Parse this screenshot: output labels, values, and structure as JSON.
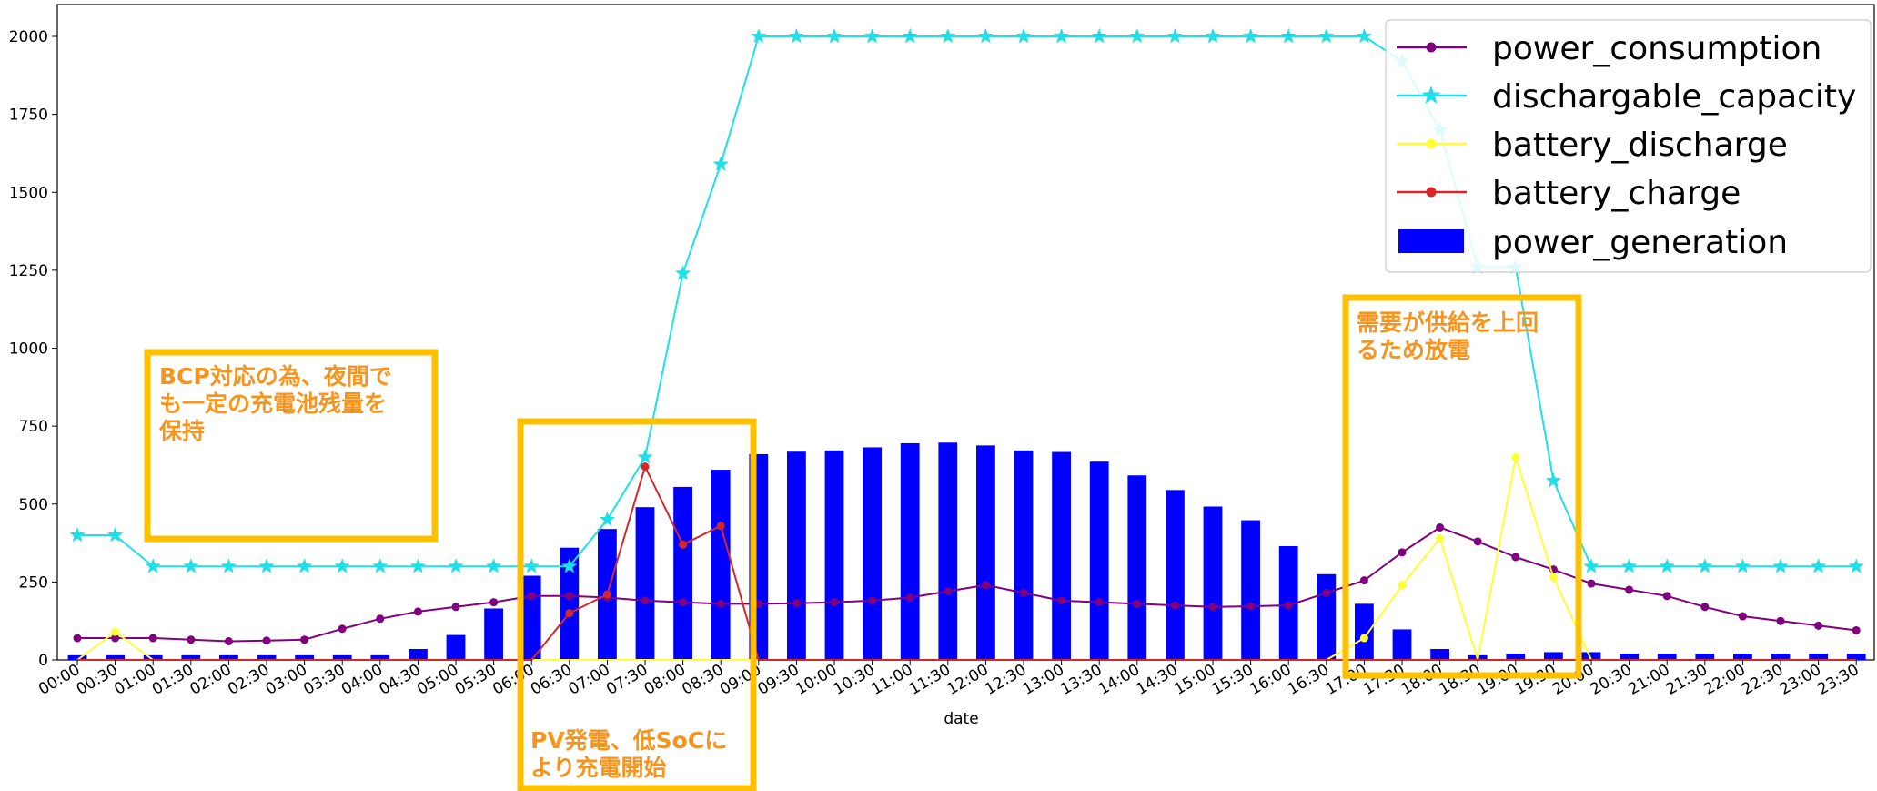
{
  "chart_data": {
    "type": "bar+line",
    "xlabel": "date",
    "ylabel": "",
    "ylim": [
      0,
      2100
    ],
    "yticks": [
      0,
      250,
      500,
      750,
      1000,
      1250,
      1500,
      1750,
      2000
    ],
    "categories": [
      "00:00",
      "00:30",
      "01:00",
      "01:30",
      "02:00",
      "02:30",
      "03:00",
      "03:30",
      "04:00",
      "04:30",
      "05:00",
      "05:30",
      "06:00",
      "06:30",
      "07:00",
      "07:30",
      "08:00",
      "08:30",
      "09:00",
      "09:30",
      "10:00",
      "10:30",
      "11:00",
      "11:30",
      "12:00",
      "12:30",
      "13:00",
      "13:30",
      "14:00",
      "14:30",
      "15:00",
      "15:30",
      "16:00",
      "16:30",
      "17:00",
      "17:30",
      "18:00",
      "18:30",
      "19:00",
      "19:30",
      "20:00",
      "20:30",
      "21:00",
      "21:30",
      "22:00",
      "22:30",
      "23:00",
      "23:30"
    ],
    "legend_position": "top-right",
    "bars": {
      "name": "power_generation",
      "color": "#0000ff",
      "values": [
        15,
        15,
        15,
        15,
        15,
        15,
        15,
        15,
        15,
        35,
        80,
        165,
        270,
        360,
        420,
        490,
        555,
        610,
        660,
        668,
        672,
        682,
        695,
        697,
        688,
        672,
        667,
        636,
        592,
        545,
        492,
        448,
        365,
        275,
        180,
        98,
        35,
        15,
        20,
        25,
        25,
        20,
        20,
        20,
        20,
        20,
        20,
        20
      ]
    },
    "series": [
      {
        "name": "power_consumption",
        "color": "#800080",
        "marker": "circle",
        "values": [
          70,
          70,
          70,
          65,
          60,
          62,
          65,
          100,
          132,
          155,
          170,
          185,
          205,
          205,
          200,
          190,
          185,
          180,
          180,
          182,
          185,
          190,
          200,
          220,
          240,
          215,
          190,
          185,
          180,
          175,
          170,
          172,
          175,
          215,
          255,
          345,
          425,
          380,
          330,
          290,
          245,
          225,
          205,
          170,
          140,
          125,
          110,
          95
        ]
      },
      {
        "name": "dischargable_capacity",
        "color": "#20dfe6",
        "marker": "star",
        "values": [
          400,
          400,
          300,
          300,
          300,
          300,
          300,
          300,
          300,
          300,
          300,
          300,
          300,
          300,
          450,
          650,
          1240,
          1590,
          2000,
          2000,
          2000,
          2000,
          2000,
          2000,
          2000,
          2000,
          2000,
          2000,
          2000,
          2000,
          2000,
          2000,
          2000,
          2000,
          2000,
          1920,
          1700,
          1260,
          1260,
          575,
          300,
          300,
          300,
          300,
          300,
          300,
          300,
          300
        ]
      },
      {
        "name": "battery_discharge",
        "color": "#ffff33",
        "marker": "circle",
        "values": [
          0,
          90,
          0,
          0,
          0,
          0,
          0,
          0,
          0,
          0,
          0,
          0,
          0,
          0,
          0,
          0,
          0,
          0,
          0,
          0,
          0,
          0,
          0,
          0,
          0,
          0,
          0,
          0,
          0,
          0,
          0,
          0,
          0,
          0,
          70,
          240,
          390,
          0,
          650,
          265,
          0,
          0,
          0,
          0,
          0,
          0,
          0,
          0
        ]
      },
      {
        "name": "battery_charge",
        "color": "#d62728",
        "marker": "circle",
        "values": [
          0,
          0,
          0,
          0,
          0,
          0,
          0,
          0,
          0,
          0,
          0,
          0,
          0,
          150,
          210,
          620,
          370,
          430,
          0,
          0,
          0,
          0,
          0,
          0,
          0,
          0,
          0,
          0,
          0,
          0,
          0,
          0,
          0,
          0,
          0,
          0,
          0,
          0,
          0,
          0,
          0,
          0,
          0,
          0,
          0,
          0,
          0,
          0
        ]
      }
    ],
    "annotations": [
      {
        "lines": [
          "BCP対応の為、夜間で",
          "も一定の充電池残量を",
          "保持"
        ],
        "color": "#ffc000"
      },
      {
        "lines": [
          "PV発電、低SoCに",
          "より充電開始"
        ],
        "color": "#ffc000"
      },
      {
        "lines": [
          "需要が供給を上回",
          "るため放電"
        ],
        "color": "#ffc000"
      }
    ]
  }
}
